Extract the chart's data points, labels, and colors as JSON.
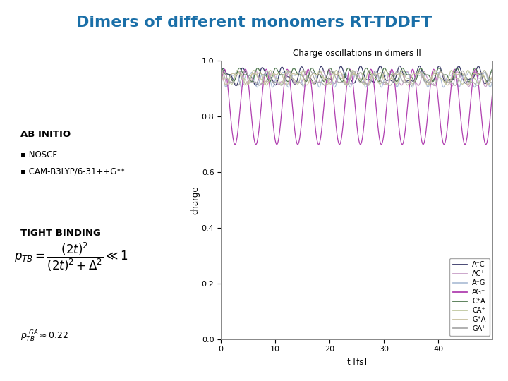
{
  "title": "Dimers of different monomers RT-TDDFT",
  "title_color": "#1a6fa8",
  "title_fontsize": 16,
  "title_fontweight": "bold",
  "background_color": "#ffffff",
  "plot_title": "Charge oscillations in dimers II",
  "xlabel": "t [fs]",
  "ylabel": "charge",
  "xlim": [
    0,
    50
  ],
  "ylim": [
    0.0,
    1.0
  ],
  "xticks": [
    0,
    10,
    20,
    30,
    40
  ],
  "yticks": [
    0.0,
    0.2,
    0.4,
    0.6,
    0.8,
    1.0
  ],
  "legend_labels": [
    "A⁺C",
    "AC⁺",
    "A⁺G",
    "AG⁺",
    "C⁺A",
    "CA⁺",
    "G⁺A",
    "GA⁺"
  ],
  "line_colors": [
    "#3a3a6a",
    "#c8a0c8",
    "#b0c0d8",
    "#b040b0",
    "#507850",
    "#c0c8a0",
    "#c8c0a0",
    "#aaaaaa"
  ],
  "ab_initio_label": "AB INITIO",
  "bullet1": "NOSCF",
  "bullet2": "CAM-B3LYP/6-31++G**",
  "tight_binding_label": "TIGHT BINDING"
}
